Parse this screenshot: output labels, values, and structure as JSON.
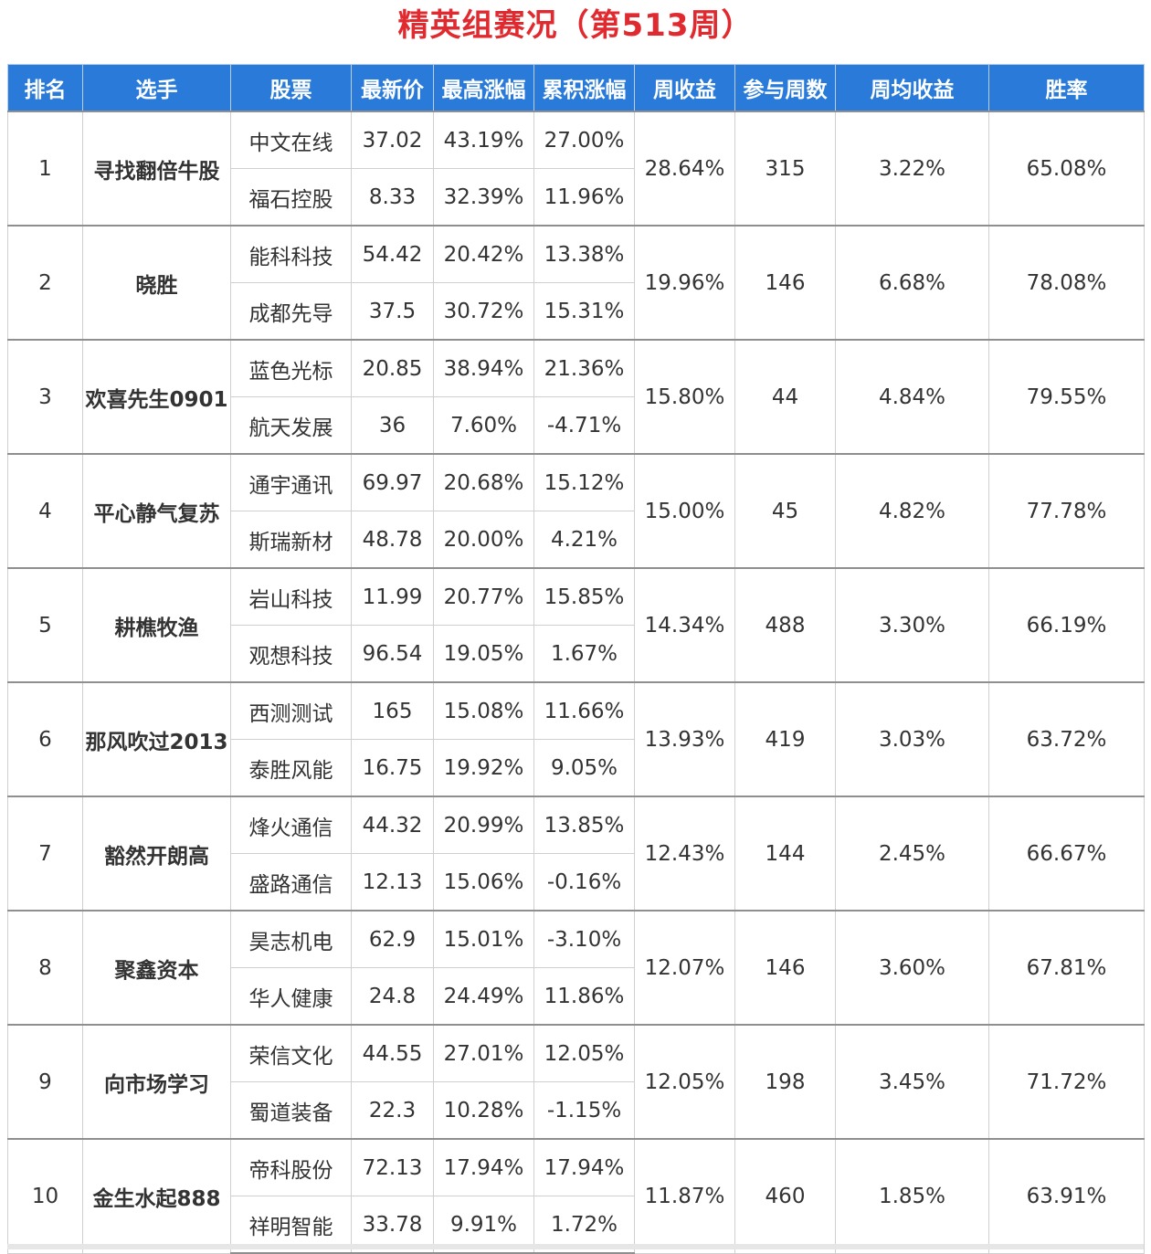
{
  "title": "精英组赛况（第513周）",
  "colors": {
    "title": "#e02a2f",
    "header_bg": "#2a7bd9",
    "header_text": "#ffffff",
    "up": "#e0242b",
    "down": "#1e8c2e",
    "player": "#1f5fb3",
    "stock": "#2467bf"
  },
  "columns": [
    "排名",
    "选手",
    "股票",
    "最新价",
    "最高涨幅",
    "累积涨幅",
    "周收益",
    "参与周数",
    "周均收益",
    "胜率"
  ],
  "rows": [
    {
      "rank": "1",
      "player": "寻找翻倍牛股",
      "weekly_return": "28.64%",
      "weeks": "315",
      "avg_return": "3.22%",
      "win_rate": "65.08%",
      "stocks": [
        {
          "name": "中文在线",
          "price": "37.02",
          "max_gain": "43.19%",
          "cum_gain": "27.00%"
        },
        {
          "name": "福石控股",
          "price": "8.33",
          "max_gain": "32.39%",
          "cum_gain": "11.96%"
        }
      ]
    },
    {
      "rank": "2",
      "player": "晓胜",
      "weekly_return": "19.96%",
      "weeks": "146",
      "avg_return": "6.68%",
      "win_rate": "78.08%",
      "stocks": [
        {
          "name": "能科科技",
          "price": "54.42",
          "max_gain": "20.42%",
          "cum_gain": "13.38%"
        },
        {
          "name": "成都先导",
          "price": "37.5",
          "max_gain": "30.72%",
          "cum_gain": "15.31%"
        }
      ]
    },
    {
      "rank": "3",
      "player": "欢喜先生0901",
      "weekly_return": "15.80%",
      "weeks": "44",
      "avg_return": "4.84%",
      "win_rate": "79.55%",
      "stocks": [
        {
          "name": "蓝色光标",
          "price": "20.85",
          "max_gain": "38.94%",
          "cum_gain": "21.36%"
        },
        {
          "name": "航天发展",
          "price": "36",
          "max_gain": "7.60%",
          "cum_gain": "-4.71%"
        }
      ]
    },
    {
      "rank": "4",
      "player": "平心静气复苏",
      "weekly_return": "15.00%",
      "weeks": "45",
      "avg_return": "4.82%",
      "win_rate": "77.78%",
      "stocks": [
        {
          "name": "通宇通讯",
          "price": "69.97",
          "max_gain": "20.68%",
          "cum_gain": "15.12%"
        },
        {
          "name": "斯瑞新材",
          "price": "48.78",
          "max_gain": "20.00%",
          "cum_gain": "4.21%"
        }
      ]
    },
    {
      "rank": "5",
      "player": "耕樵牧渔",
      "weekly_return": "14.34%",
      "weeks": "488",
      "avg_return": "3.30%",
      "win_rate": "66.19%",
      "stocks": [
        {
          "name": "岩山科技",
          "price": "11.99",
          "max_gain": "20.77%",
          "cum_gain": "15.85%"
        },
        {
          "name": "观想科技",
          "price": "96.54",
          "max_gain": "19.05%",
          "cum_gain": "1.67%"
        }
      ]
    },
    {
      "rank": "6",
      "player": "那风吹过2013",
      "weekly_return": "13.93%",
      "weeks": "419",
      "avg_return": "3.03%",
      "win_rate": "63.72%",
      "stocks": [
        {
          "name": "西测测试",
          "price": "165",
          "max_gain": "15.08%",
          "cum_gain": "11.66%"
        },
        {
          "name": "泰胜风能",
          "price": "16.75",
          "max_gain": "19.92%",
          "cum_gain": "9.05%"
        }
      ]
    },
    {
      "rank": "7",
      "player": "豁然开朗高",
      "weekly_return": "12.43%",
      "weeks": "144",
      "avg_return": "2.45%",
      "win_rate": "66.67%",
      "stocks": [
        {
          "name": "烽火通信",
          "price": "44.32",
          "max_gain": "20.99%",
          "cum_gain": "13.85%"
        },
        {
          "name": "盛路通信",
          "price": "12.13",
          "max_gain": "15.06%",
          "cum_gain": "-0.16%"
        }
      ]
    },
    {
      "rank": "8",
      "player": "聚鑫资本",
      "weekly_return": "12.07%",
      "weeks": "146",
      "avg_return": "3.60%",
      "win_rate": "67.81%",
      "stocks": [
        {
          "name": "昊志机电",
          "price": "62.9",
          "max_gain": "15.01%",
          "cum_gain": "-3.10%"
        },
        {
          "name": "华人健康",
          "price": "24.8",
          "max_gain": "24.49%",
          "cum_gain": "11.86%"
        }
      ]
    },
    {
      "rank": "9",
      "player": "向市场学习",
      "weekly_return": "12.05%",
      "weeks": "198",
      "avg_return": "3.45%",
      "win_rate": "71.72%",
      "stocks": [
        {
          "name": "荣信文化",
          "price": "44.55",
          "max_gain": "27.01%",
          "cum_gain": "12.05%"
        },
        {
          "name": "蜀道装备",
          "price": "22.3",
          "max_gain": "10.28%",
          "cum_gain": "-1.15%"
        }
      ]
    },
    {
      "rank": "10",
      "player": "金生水起888",
      "weekly_return": "11.87%",
      "weeks": "460",
      "avg_return": "1.85%",
      "win_rate": "63.91%",
      "stocks": [
        {
          "name": "帝科股份",
          "price": "72.13",
          "max_gain": "17.94%",
          "cum_gain": "17.94%"
        },
        {
          "name": "祥明智能",
          "price": "33.78",
          "max_gain": "9.91%",
          "cum_gain": "1.72%"
        }
      ]
    }
  ]
}
